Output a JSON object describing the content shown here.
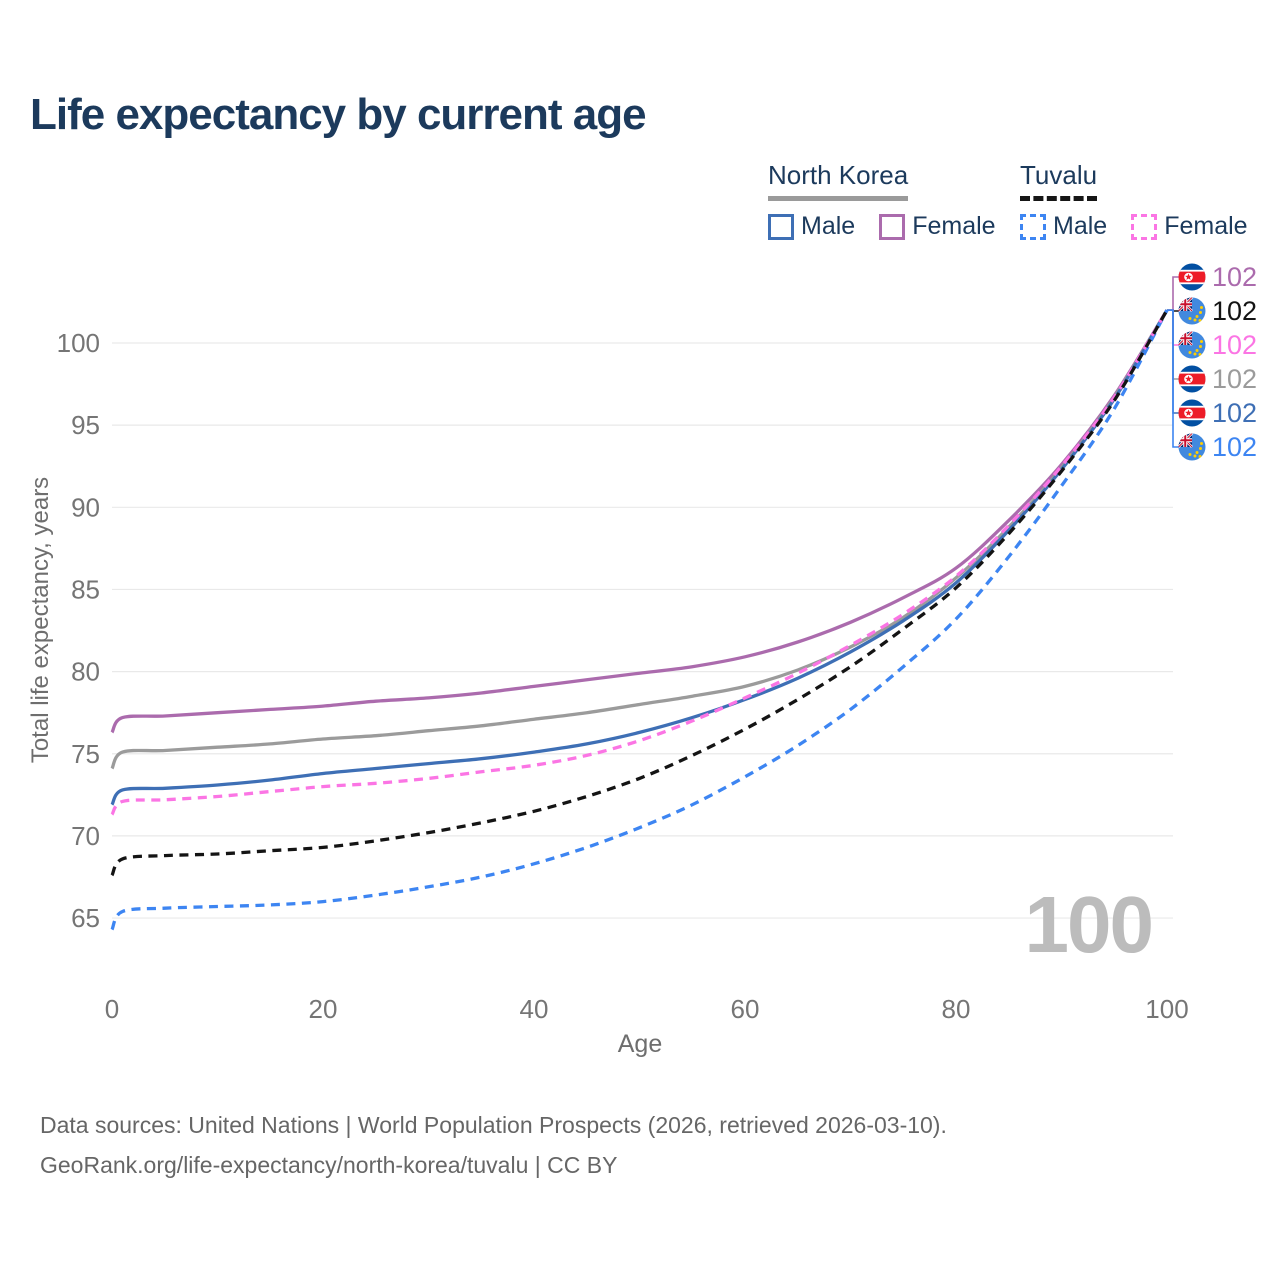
{
  "title": "Life expectancy by current age",
  "watermark": "100",
  "legend": {
    "groups": [
      {
        "country": "North Korea",
        "style": "solid",
        "items": [
          {
            "label": "Male",
            "color": "#3e6fb5"
          },
          {
            "label": "Female",
            "color": "#ab6bad"
          }
        ]
      },
      {
        "country": "Tuvalu",
        "style": "dashed",
        "items": [
          {
            "label": "Male",
            "color": "#3d85f2"
          },
          {
            "label": "Female",
            "color": "#fb75e4"
          }
        ]
      }
    ]
  },
  "footer": {
    "line1": "Data sources: United Nations | World Population Prospects (2026, retrieved 2026-03-10).",
    "line2": "GeoRank.org/life-expectancy/north-korea/tuvalu | CC BY"
  },
  "chart_data": {
    "type": "line",
    "title": "Life expectancy by current age",
    "xlabel": "Age",
    "ylabel": "Total life expectancy, years",
    "xlim": [
      0,
      100
    ],
    "ylim": [
      63,
      103
    ],
    "x_ticks": [
      0,
      20,
      40,
      60,
      80,
      100
    ],
    "y_ticks": [
      65,
      70,
      75,
      80,
      85,
      90,
      95,
      100
    ],
    "grid": "horizontal",
    "legend_position": "top-right",
    "x": [
      0,
      1,
      5,
      10,
      15,
      20,
      25,
      30,
      35,
      40,
      45,
      50,
      55,
      60,
      65,
      70,
      75,
      80,
      85,
      90,
      95,
      100
    ],
    "series": [
      {
        "name": "North Korea Female",
        "country": "North Korea",
        "sex": "Female",
        "flag": "nk",
        "color": "#ab6bad",
        "dash": "solid",
        "end_value_label": "102",
        "values": [
          76.3,
          77.2,
          77.3,
          77.5,
          77.7,
          77.9,
          78.2,
          78.4,
          78.7,
          79.1,
          79.5,
          79.9,
          80.3,
          80.9,
          81.8,
          83.0,
          84.5,
          86.3,
          89.2,
          92.6,
          96.8,
          102
        ]
      },
      {
        "name": "North Korea",
        "country": "North Korea",
        "sex": "Total",
        "flag": "nk",
        "color": "#9b9b9b",
        "dash": "solid",
        "end_value_label": "102",
        "values": [
          74.1,
          75.1,
          75.2,
          75.4,
          75.6,
          75.9,
          76.1,
          76.4,
          76.7,
          77.1,
          77.5,
          78.0,
          78.5,
          79.1,
          80.1,
          81.5,
          83.3,
          85.7,
          88.8,
          92.4,
          96.7,
          102
        ]
      },
      {
        "name": "North Korea Male",
        "country": "North Korea",
        "sex": "Male",
        "flag": "nk",
        "color": "#3e6fb5",
        "dash": "solid",
        "end_value_label": "102",
        "values": [
          71.9,
          72.8,
          72.9,
          73.1,
          73.4,
          73.8,
          74.1,
          74.4,
          74.7,
          75.1,
          75.6,
          76.3,
          77.2,
          78.3,
          79.6,
          81.2,
          83.1,
          85.4,
          88.6,
          92.3,
          96.6,
          102
        ]
      },
      {
        "name": "Tuvalu Female",
        "country": "Tuvalu",
        "sex": "Female",
        "flag": "tv",
        "color": "#fb75e4",
        "dash": "dashed",
        "end_value_label": "102",
        "values": [
          71.3,
          72.1,
          72.2,
          72.4,
          72.7,
          73.0,
          73.2,
          73.5,
          73.9,
          74.3,
          74.9,
          75.8,
          77.0,
          78.4,
          79.9,
          81.6,
          83.5,
          85.8,
          88.9,
          92.5,
          96.7,
          102
        ]
      },
      {
        "name": "Tuvalu",
        "country": "Tuvalu",
        "sex": "Total",
        "flag": "tv",
        "color": "#141414",
        "dash": "dashed",
        "end_value_label": "102",
        "values": [
          67.6,
          68.6,
          68.8,
          68.9,
          69.1,
          69.3,
          69.7,
          70.2,
          70.8,
          71.5,
          72.4,
          73.5,
          74.9,
          76.5,
          78.3,
          80.3,
          82.6,
          85.1,
          88.4,
          92.2,
          96.5,
          102
        ]
      },
      {
        "name": "Tuvalu Male",
        "country": "Tuvalu",
        "sex": "Male",
        "flag": "tv",
        "color": "#3d85f2",
        "dash": "dashed",
        "end_value_label": "102",
        "values": [
          64.3,
          65.4,
          65.6,
          65.7,
          65.8,
          66.0,
          66.4,
          66.9,
          67.5,
          68.3,
          69.3,
          70.5,
          71.9,
          73.6,
          75.5,
          77.7,
          80.3,
          83.2,
          87.0,
          91.3,
          96.0,
          102
        ]
      }
    ],
    "end_labels_order": [
      "North Korea Female",
      "Tuvalu",
      "Tuvalu Female",
      "North Korea",
      "North Korea Male",
      "Tuvalu Male"
    ]
  }
}
